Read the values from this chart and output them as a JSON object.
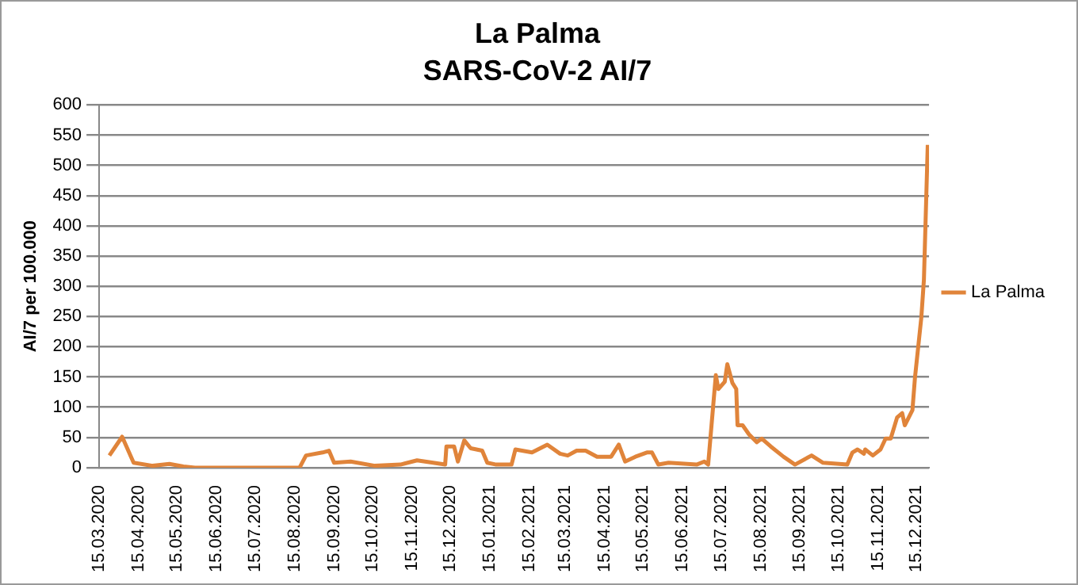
{
  "chart_data": {
    "type": "line",
    "title": "La Palma",
    "subtitle": "SARS-CoV-2 AI/7",
    "ylabel": "AI/7 per 100.000",
    "x": [
      "2020-03-23",
      "2020-04-02",
      "2020-04-11",
      "2020-04-26",
      "2020-05-09",
      "2020-05-20",
      "2020-05-29",
      "2020-08-19",
      "2020-08-24",
      "2020-09-06",
      "2020-09-11",
      "2020-09-15",
      "2020-09-28",
      "2020-10-17",
      "2020-11-06",
      "2020-11-19",
      "2020-12-11",
      "2020-12-12",
      "2020-12-18",
      "2020-12-21",
      "2020-12-26",
      "2020-12-31",
      "2021-01-09",
      "2021-01-13",
      "2021-01-20",
      "2021-02-01",
      "2021-02-04",
      "2021-02-17",
      "2021-03-01",
      "2021-03-11",
      "2021-03-17",
      "2021-03-24",
      "2021-03-31",
      "2021-04-09",
      "2021-04-20",
      "2021-04-26",
      "2021-05-01",
      "2021-05-09",
      "2021-05-18",
      "2021-05-22",
      "2021-05-27",
      "2021-06-04",
      "2021-06-26",
      "2021-07-02",
      "2021-07-05",
      "2021-07-11",
      "2021-07-13",
      "2021-07-18",
      "2021-07-20",
      "2021-07-24",
      "2021-07-27",
      "2021-07-28",
      "2021-08-01",
      "2021-08-06",
      "2021-08-12",
      "2021-08-16",
      "2021-08-23",
      "2021-09-02",
      "2021-09-11",
      "2021-09-24",
      "2021-10-03",
      "2021-10-22",
      "2021-10-26",
      "2021-10-30",
      "2021-11-04",
      "2021-11-05",
      "2021-11-11",
      "2021-11-17",
      "2021-11-21",
      "2021-11-25",
      "2021-11-30",
      "2021-12-04",
      "2021-12-06",
      "2021-12-12",
      "2021-12-14",
      "2021-12-19",
      "2021-12-21",
      "2021-12-24"
    ],
    "series": [
      {
        "name": "La Palma",
        "color": "#e0843a",
        "values": [
          20,
          51,
          8,
          3,
          6,
          2,
          0,
          0,
          20,
          25,
          28,
          8,
          10,
          3,
          5,
          12,
          5,
          35,
          35,
          10,
          45,
          32,
          28,
          8,
          5,
          5,
          30,
          25,
          38,
          23,
          20,
          28,
          28,
          18,
          18,
          38,
          10,
          18,
          25,
          25,
          5,
          8,
          5,
          10,
          5,
          153,
          130,
          142,
          171,
          140,
          130,
          70,
          70,
          55,
          42,
          48,
          35,
          18,
          5,
          20,
          8,
          5,
          25,
          30,
          23,
          30,
          20,
          30,
          48,
          48,
          83,
          90,
          70,
          95,
          149,
          249,
          311,
          534
        ]
      }
    ],
    "xlim": [
      "2020-03-15",
      "2021-12-25"
    ],
    "xticks": [
      {
        "value": "2020-03-15",
        "label": "15.03.2020"
      },
      {
        "value": "2020-04-15",
        "label": "15.04.2020"
      },
      {
        "value": "2020-05-15",
        "label": "15.05.2020"
      },
      {
        "value": "2020-06-15",
        "label": "15.06.2020"
      },
      {
        "value": "2020-07-15",
        "label": "15.07.2020"
      },
      {
        "value": "2020-08-15",
        "label": "15.08.2020"
      },
      {
        "value": "2020-09-15",
        "label": "15.09.2020"
      },
      {
        "value": "2020-10-15",
        "label": "15.10.2020"
      },
      {
        "value": "2020-11-15",
        "label": "15.11.2020"
      },
      {
        "value": "2020-12-15",
        "label": "15.12.2020"
      },
      {
        "value": "2021-01-15",
        "label": "15.01.2021"
      },
      {
        "value": "2021-02-15",
        "label": "15.02.2021"
      },
      {
        "value": "2021-03-15",
        "label": "15.03.2021"
      },
      {
        "value": "2021-04-15",
        "label": "15.04.2021"
      },
      {
        "value": "2021-05-15",
        "label": "15.05.2021"
      },
      {
        "value": "2021-06-15",
        "label": "15.06.2021"
      },
      {
        "value": "2021-07-15",
        "label": "15.07.2021"
      },
      {
        "value": "2021-08-15",
        "label": "15.08.2021"
      },
      {
        "value": "2021-09-15",
        "label": "15.09.2021"
      },
      {
        "value": "2021-10-15",
        "label": "15.10.2021"
      },
      {
        "value": "2021-11-15",
        "label": "15.11.2021"
      },
      {
        "value": "2021-12-15",
        "label": "15.12.2021"
      }
    ],
    "ylim": [
      0,
      600
    ],
    "yticks": [
      0,
      50,
      100,
      150,
      200,
      250,
      300,
      350,
      400,
      450,
      500,
      550,
      600
    ],
    "grid": "y",
    "legend": "right",
    "marker": "none",
    "line_style": "solid"
  }
}
